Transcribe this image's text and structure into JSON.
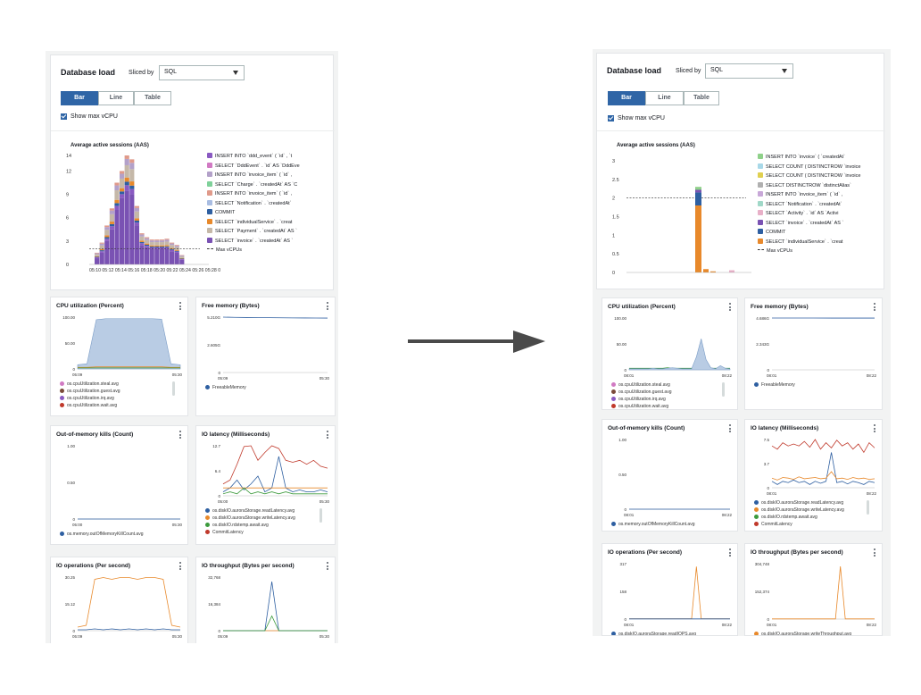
{
  "db_load": {
    "title": "Database load",
    "sliced_by_label": "Sliced by",
    "sliced_by_value": "SQL",
    "tabs": [
      "Bar",
      "Line",
      "Table"
    ],
    "active_tab": "Bar",
    "show_max_vcpu": "Show max vCPU",
    "aas_title": "Average active sessions (AAS)"
  },
  "left": {
    "legend": [
      {
        "label": "INSERT INTO `ddd_event` ( `id` , `t",
        "color": "#8a5ac2"
      },
      {
        "label": "SELECT `DddEvent` . `id` AS `DddEve",
        "color": "#d17ac3"
      },
      {
        "label": "INSERT INTO `invoice_item` ( `id` ,",
        "color": "#b3a1c9"
      },
      {
        "label": "SELECT `Charge` . `createdAt` AS `C",
        "color": "#7fd19a"
      },
      {
        "label": "INSERT INTO `invoice_item` ( `id` ,",
        "color": "#e09a8a"
      },
      {
        "label": "SELECT `Notification` . `createdAt`",
        "color": "#a9bde2"
      },
      {
        "label": "COMMIT",
        "color": "#2e5fa1"
      },
      {
        "label": "SELECT `individualService` . `creat",
        "color": "#e8892b"
      },
      {
        "label": "SELECT `Payment` . `createdAt` AS `",
        "color": "#c5b8a8"
      },
      {
        "label": "SELECT `invoice` . `createdAt` AS `",
        "color": "#7a52b3"
      }
    ],
    "max_vcpus_label": "Max vCPUs",
    "chart_data": {
      "type": "bar",
      "title": "Average active sessions (AAS)",
      "ylim": [
        0,
        14
      ],
      "yticks": [
        "14",
        "12",
        "9",
        "6",
        "3",
        "0"
      ],
      "xtick_label": "05:10 05:12 05:14 05:16 05:18 05:20 05:22 05:24 05:26 05:28 05:30",
      "max_vcpus": 2,
      "totals": [
        1.5,
        2.8,
        5,
        7.2,
        10.5,
        12,
        14,
        13.5,
        7.5,
        4,
        3.5,
        3.2,
        3.2,
        3.2,
        3.3,
        2.8,
        2.5,
        1.2
      ],
      "invoice_select": [
        0.8,
        1.5,
        3,
        4.5,
        7,
        8.5,
        9.5,
        9,
        5,
        2.5,
        2.2,
        2,
        2,
        2,
        2,
        1.7,
        1.5,
        0.6
      ]
    },
    "cards": {
      "cpu": {
        "title": "CPU utilization (Percent)",
        "yticks": [
          "100.00",
          "50.00",
          "0"
        ],
        "xticks": [
          "05:09",
          "05:30"
        ],
        "legend": [
          {
            "label": "os.cpuUtilization.steal.avg",
            "color": "#d17ac3"
          },
          {
            "label": "os.cpuUtilization.guest.avg",
            "color": "#7a4a3a"
          },
          {
            "label": "os.cpuUtilization.irq.avg",
            "color": "#8a5ac2"
          },
          {
            "label": "os.cpuUtilization.wait.avg",
            "color": "#c0392b"
          }
        ]
      },
      "mem": {
        "title": "Free memory (Bytes)",
        "yticks": [
          "5.210G",
          "2.605G",
          "0"
        ],
        "xticks": [
          "05:09",
          "05:30"
        ],
        "legend": [
          {
            "label": "FreeableMemory",
            "color": "#2e5fa1"
          }
        ]
      },
      "oom": {
        "title": "Out-of-memory kills (Count)",
        "yticks": [
          "1.00",
          "0.50",
          "0"
        ],
        "xticks": [
          "05:00",
          "05:30"
        ],
        "legend": [
          {
            "label": "os.memory.outOfMemoryKillCount.avg",
            "color": "#2e5fa1"
          }
        ]
      },
      "iolat": {
        "title": "IO latency (Milliseconds)",
        "yticks": [
          "12.7",
          "6.4",
          "0"
        ],
        "xticks": [
          "05:00",
          "05:30"
        ],
        "legend": [
          {
            "label": "os.diskIO.auroraStorage.readLatency.avg",
            "color": "#2e5fa1"
          },
          {
            "label": "os.diskIO.auroraStorage.writeLatency.avg",
            "color": "#e8892b"
          },
          {
            "label": "os.diskIO.rdstemp.await.avg",
            "color": "#3c9a3c"
          },
          {
            "label": "CommitLatency",
            "color": "#c0392b"
          }
        ]
      },
      "ioops": {
        "title": "IO operations (Per second)",
        "yticks": [
          "30.25",
          "15.12",
          "0"
        ],
        "xticks": [
          "05:09",
          "05:30"
        ]
      },
      "iothr": {
        "title": "IO throughput (Bytes per second)",
        "yticks": [
          "32,768",
          "16,384",
          "0"
        ],
        "xticks": [
          "05:09",
          "05:30"
        ]
      }
    }
  },
  "right": {
    "legend": [
      {
        "label": "INSERT INTO `invoice` ( `createdAt`",
        "color": "#8fd18a"
      },
      {
        "label": "SELECT COUNT ( DISTINCTROW `invoice",
        "color": "#a8d8e8"
      },
      {
        "label": "SELECT COUNT ( DISTINCTROW `invoice",
        "color": "#e0d050"
      },
      {
        "label": "SELECT DISTINCTROW `distinctAlias`",
        "color": "#b0b0b0"
      },
      {
        "label": "INSERT INTO `invoice_item` ( `id` ,",
        "color": "#c8a8d8"
      },
      {
        "label": "SELECT `Notification` . `createdAt`",
        "color": "#a0d8c8"
      },
      {
        "label": "SELECT `Activity` . `id` AS `Activi",
        "color": "#e8b0c8"
      },
      {
        "label": "SELECT `invoice` . `createdAt` AS `",
        "color": "#7a52b3"
      },
      {
        "label": "COMMIT",
        "color": "#2e5fa1"
      },
      {
        "label": "SELECT `individualService` . `creat",
        "color": "#e8892b"
      }
    ],
    "max_vcpus_label": "Max vCPUs",
    "chart_data": {
      "type": "bar",
      "title": "Average active sessions (AAS)",
      "ylim": [
        0,
        3
      ],
      "yticks": [
        "3",
        "2.5",
        "2",
        "1.5",
        "1",
        "0.5",
        "0"
      ],
      "xtick_label": "08:02 08:04 08:06 08:08 08:10 08:12 08:14 08:16 08:18 08:20",
      "max_vcpus": 2,
      "spike_total": 2.3,
      "spike_orange": 1.8
    },
    "cards": {
      "cpu": {
        "title": "CPU utilization (Percent)",
        "yticks": [
          "100.00",
          "50.00",
          "0"
        ],
        "xticks": [
          "08:01",
          "08:22"
        ],
        "legend": [
          {
            "label": "os.cpuUtilization.steal.avg",
            "color": "#d17ac3"
          },
          {
            "label": "os.cpuUtilization.guest.avg",
            "color": "#7a4a3a"
          },
          {
            "label": "os.cpuUtilization.irq.avg",
            "color": "#8a5ac2"
          },
          {
            "label": "os.cpuUtilization.wait.avg",
            "color": "#c0392b"
          }
        ]
      },
      "mem": {
        "title": "Free memory (Bytes)",
        "yticks": [
          "4.686G",
          "2.343G",
          "0"
        ],
        "xticks": [
          "08:01",
          "08:22"
        ],
        "legend": [
          {
            "label": "FreeableMemory",
            "color": "#2e5fa1"
          }
        ]
      },
      "oom": {
        "title": "Out-of-memory kills (Count)",
        "yticks": [
          "1.00",
          "0.50",
          "0"
        ],
        "xticks": [
          "08:01",
          "08:22"
        ],
        "legend": [
          {
            "label": "os.memory.outOfMemoryKillCount.avg",
            "color": "#2e5fa1"
          }
        ]
      },
      "iolat": {
        "title": "IO latency (Milliseconds)",
        "yticks": [
          "7.5",
          "3.7",
          "0"
        ],
        "xticks": [
          "08:01",
          "08:22"
        ],
        "legend": [
          {
            "label": "os.diskIO.auroraStorage.readLatency.avg",
            "color": "#2e5fa1"
          },
          {
            "label": "os.diskIO.auroraStorage.writeLatency.avg",
            "color": "#e8892b"
          },
          {
            "label": "os.diskIO.rdstemp.await.avg",
            "color": "#3c9a3c"
          },
          {
            "label": "CommitLatency",
            "color": "#c0392b"
          }
        ]
      },
      "ioops": {
        "title": "IO operations (Per second)",
        "yticks": [
          "317",
          "158",
          "0"
        ],
        "xticks": [
          "08:01",
          "08:22"
        ],
        "legend": [
          {
            "label": "os.diskIO.auroraStorage.readIOPS.avg",
            "color": "#2e5fa1"
          }
        ]
      },
      "iothr": {
        "title": "IO throughput (Bytes per second)",
        "yticks": [
          "304,748",
          "152,374",
          "0"
        ],
        "xticks": [
          "08:01",
          "08:22"
        ],
        "legend": [
          {
            "label": "os.diskIO.auroraStorage.writeThroughput.avg",
            "color": "#e8892b"
          }
        ]
      }
    }
  }
}
